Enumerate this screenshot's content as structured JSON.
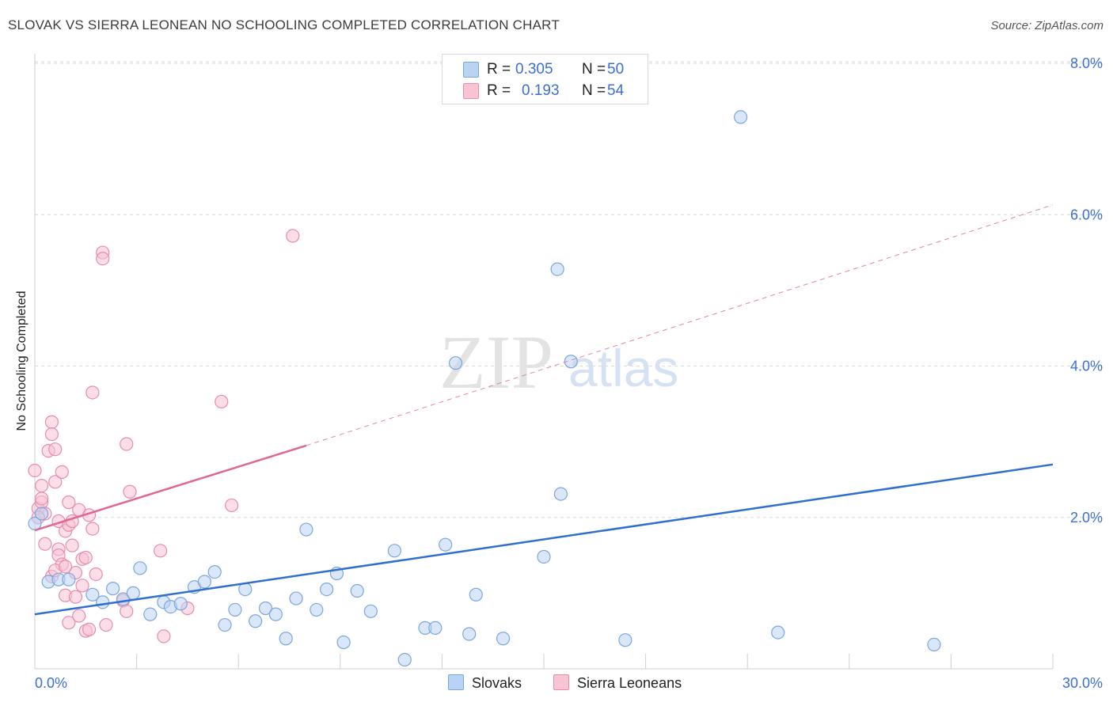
{
  "title": "SLOVAK VS SIERRA LEONEAN NO SCHOOLING COMPLETED CORRELATION CHART",
  "source": "Source: ZipAtlas.com",
  "colors": {
    "blue_fill": "#b9d3f3",
    "blue_stroke": "#7ba6df",
    "blue_line": "#2f6fd0",
    "pink_fill": "#f8c3d3",
    "pink_stroke": "#e98cac",
    "pink_line": "#e0688f",
    "axis_text": "#3b6fd4",
    "grid": "#d9d9d9"
  },
  "legend": {
    "rows": [
      {
        "r_label": "R =",
        "r_value": "0.305",
        "n_label": "N =",
        "n_value": "50"
      },
      {
        "r_label": "R =",
        "r_value": "0.193",
        "n_label": "N =",
        "n_value": "54"
      }
    ]
  },
  "bottom_legend": {
    "slovaks": "Slovaks",
    "sierra": "Sierra Leoneans"
  },
  "watermark": {
    "zip": "ZIP",
    "atlas": "atlas"
  },
  "chart_data": {
    "type": "scatter",
    "title": "SLOVAK VS SIERRA LEONEAN NO SCHOOLING COMPLETED CORRELATION CHART",
    "xlabel": "",
    "ylabel": "No Schooling Completed",
    "xlim": [
      0,
      30
    ],
    "ylim": [
      0,
      8
    ],
    "x_tick_labels": [
      "0.0%",
      "30.0%"
    ],
    "y_ticks": [
      2,
      4,
      6,
      8
    ],
    "y_tick_labels": [
      "2.0%",
      "4.0%",
      "6.0%",
      "8.0%"
    ],
    "grid": true,
    "series": [
      {
        "name": "Slovaks",
        "R": 0.305,
        "N": 50,
        "trend": {
          "x": [
            0,
            30
          ],
          "y": [
            0.72,
            2.7
          ],
          "style": "solid"
        },
        "points": [
          [
            0.0,
            1.92
          ],
          [
            0.4,
            1.15
          ],
          [
            0.7,
            1.18
          ],
          [
            1.0,
            1.18
          ],
          [
            1.7,
            0.98
          ],
          [
            2.0,
            0.88
          ],
          [
            2.3,
            1.06
          ],
          [
            2.6,
            0.92
          ],
          [
            2.9,
            1.0
          ],
          [
            3.1,
            1.33
          ],
          [
            3.4,
            0.72
          ],
          [
            3.8,
            0.88
          ],
          [
            4.0,
            0.82
          ],
          [
            4.3,
            0.86
          ],
          [
            4.7,
            1.08
          ],
          [
            5.0,
            1.15
          ],
          [
            5.3,
            1.28
          ],
          [
            5.6,
            0.58
          ],
          [
            5.9,
            0.78
          ],
          [
            6.2,
            1.05
          ],
          [
            6.5,
            0.63
          ],
          [
            6.8,
            0.8
          ],
          [
            7.1,
            0.72
          ],
          [
            7.4,
            0.4
          ],
          [
            7.7,
            0.93
          ],
          [
            8.0,
            1.84
          ],
          [
            8.3,
            0.78
          ],
          [
            8.6,
            1.05
          ],
          [
            8.9,
            1.26
          ],
          [
            9.1,
            0.35
          ],
          [
            9.5,
            1.03
          ],
          [
            9.9,
            0.76
          ],
          [
            10.6,
            1.56
          ],
          [
            10.9,
            0.12
          ],
          [
            11.5,
            0.54
          ],
          [
            11.8,
            0.54
          ],
          [
            12.1,
            1.64
          ],
          [
            12.4,
            4.04
          ],
          [
            12.8,
            0.46
          ],
          [
            13.0,
            0.98
          ],
          [
            13.8,
            0.4
          ],
          [
            15.0,
            1.48
          ],
          [
            15.4,
            5.28
          ],
          [
            15.5,
            2.31
          ],
          [
            15.8,
            4.06
          ],
          [
            17.4,
            0.38
          ],
          [
            20.8,
            7.29
          ],
          [
            21.9,
            0.48
          ],
          [
            26.5,
            0.32
          ],
          [
            0.2,
            2.05
          ]
        ]
      },
      {
        "name": "Sierra Leoneans",
        "R": 0.193,
        "N": 54,
        "trend": {
          "x": [
            0,
            8
          ],
          "y": [
            1.83,
            2.95
          ],
          "style": "solid",
          "extended": {
            "x": [
              8,
              30
            ],
            "y": [
              2.95,
              6.13
            ],
            "style": "dashed"
          }
        },
        "points": [
          [
            0.0,
            2.62
          ],
          [
            0.1,
            2.12
          ],
          [
            0.2,
            2.42
          ],
          [
            0.2,
            2.2
          ],
          [
            0.3,
            2.05
          ],
          [
            0.4,
            2.88
          ],
          [
            0.5,
            3.26
          ],
          [
            0.5,
            3.1
          ],
          [
            0.5,
            1.22
          ],
          [
            0.6,
            2.9
          ],
          [
            0.6,
            2.47
          ],
          [
            0.7,
            1.95
          ],
          [
            0.7,
            1.58
          ],
          [
            0.7,
            1.5
          ],
          [
            0.8,
            1.38
          ],
          [
            0.8,
            2.6
          ],
          [
            0.9,
            1.82
          ],
          [
            0.9,
            0.97
          ],
          [
            1.0,
            2.2
          ],
          [
            1.0,
            1.9
          ],
          [
            1.0,
            0.61
          ],
          [
            1.1,
            1.95
          ],
          [
            1.1,
            1.63
          ],
          [
            1.2,
            1.27
          ],
          [
            1.3,
            2.1
          ],
          [
            1.3,
            0.7
          ],
          [
            1.4,
            1.45
          ],
          [
            1.5,
            1.47
          ],
          [
            1.5,
            0.5
          ],
          [
            1.6,
            0.52
          ],
          [
            1.6,
            2.03
          ],
          [
            1.7,
            3.65
          ],
          [
            1.7,
            1.85
          ],
          [
            1.8,
            1.25
          ],
          [
            2.0,
            5.5
          ],
          [
            2.0,
            5.42
          ],
          [
            2.1,
            0.58
          ],
          [
            2.6,
            0.9
          ],
          [
            2.7,
            2.97
          ],
          [
            2.7,
            0.76
          ],
          [
            2.8,
            2.34
          ],
          [
            3.7,
            1.56
          ],
          [
            3.8,
            0.43
          ],
          [
            4.5,
            0.8
          ],
          [
            5.5,
            3.53
          ],
          [
            5.8,
            2.16
          ],
          [
            7.6,
            5.72
          ],
          [
            0.1,
            2.0
          ],
          [
            0.3,
            1.65
          ],
          [
            0.6,
            1.3
          ],
          [
            0.9,
            1.35
          ],
          [
            1.2,
            0.95
          ],
          [
            1.4,
            1.1
          ],
          [
            0.2,
            2.25
          ]
        ]
      }
    ]
  }
}
